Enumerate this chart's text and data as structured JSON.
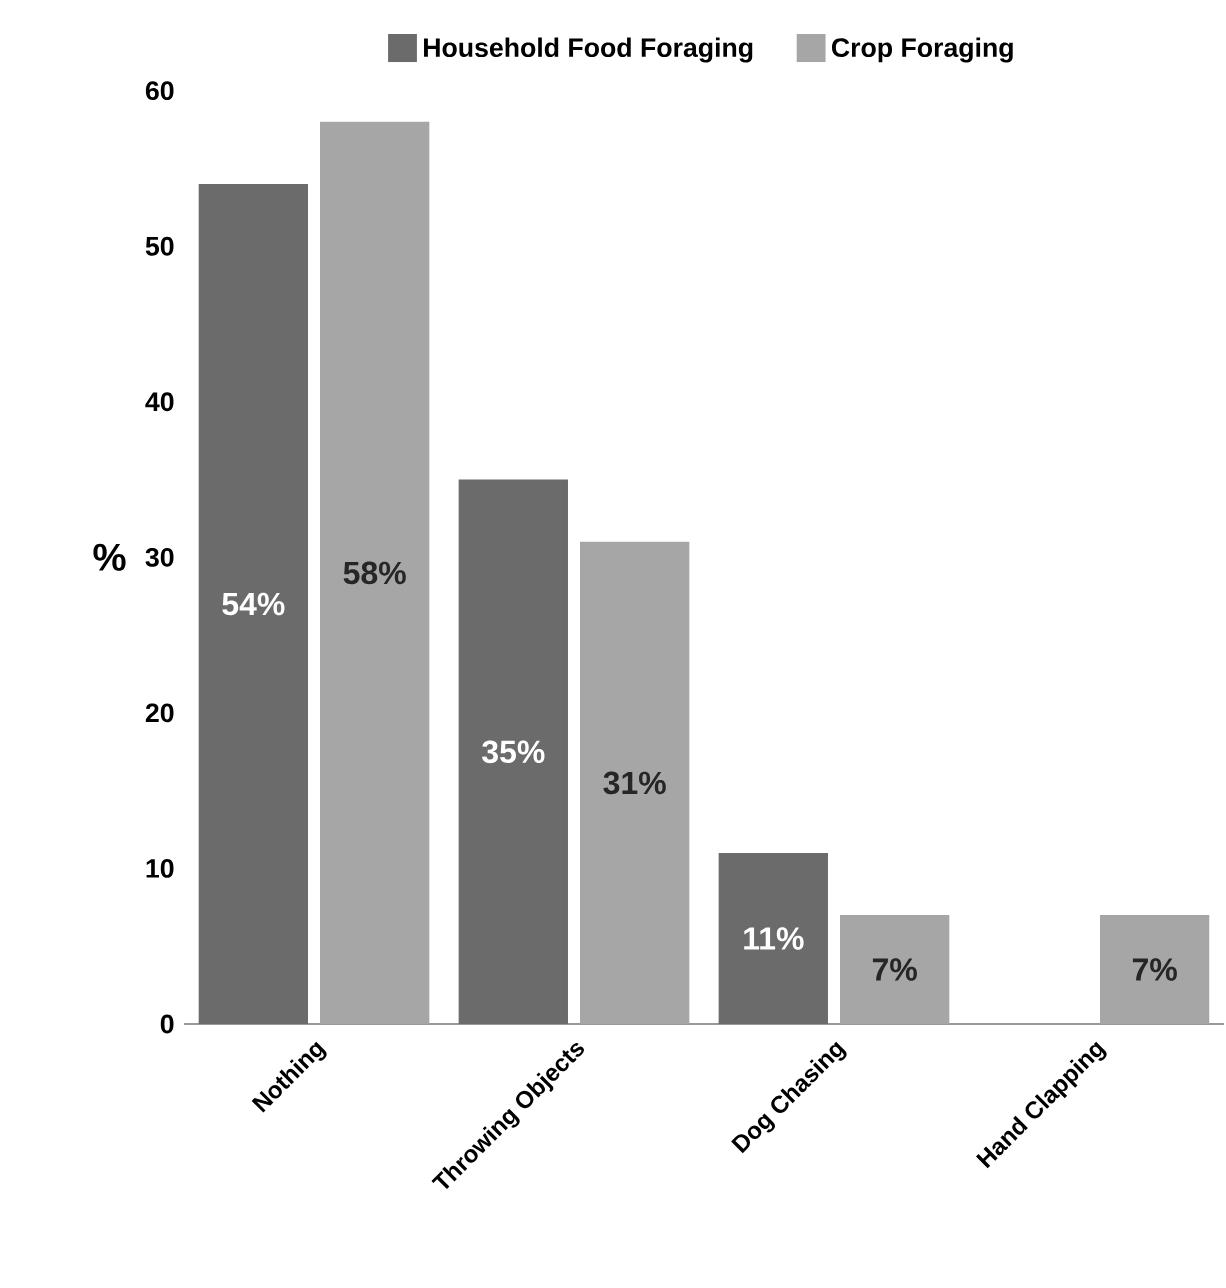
{
  "chart_data": {
    "type": "bar",
    "ylabel": "%",
    "categories": [
      "Nothing",
      "Throwing Objects",
      "Dog Chasing",
      "Hand Clapping"
    ],
    "series": [
      {
        "name": "Household Food Foraging",
        "color": "#6b6b6b",
        "values": [
          54,
          35,
          11,
          null
        ],
        "value_labels": [
          "54%",
          "35%",
          "11%",
          null
        ]
      },
      {
        "name": "Crop Foraging",
        "color": "#a6a6a6",
        "values": [
          58,
          31,
          7,
          7
        ],
        "value_labels": [
          "58%",
          "31%",
          "7%",
          "7%"
        ]
      }
    ],
    "ylim": [
      0,
      60
    ],
    "yticks": [
      0,
      10,
      20,
      30,
      40,
      50,
      60
    ],
    "legend": "top",
    "grid": false
  }
}
